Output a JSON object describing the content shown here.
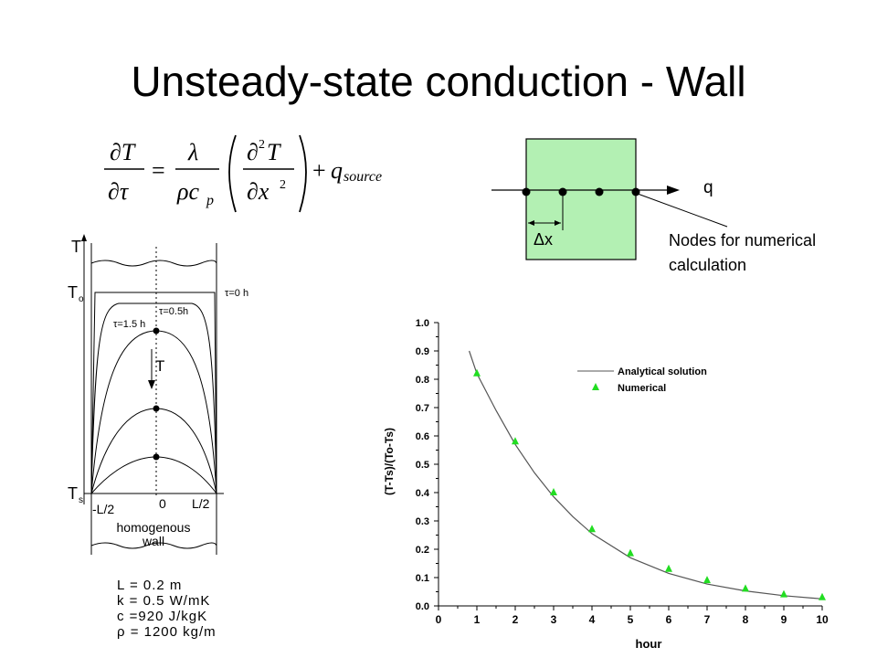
{
  "slide": {
    "title": "Unsteady-state conduction - Wall"
  },
  "equation": {
    "lhs_num": "∂T",
    "lhs_den": "∂τ",
    "coef_num": "λ",
    "coef_den": "ρc",
    "coef_den_sub": "p",
    "inner_num": "∂",
    "inner_num_sup": "2",
    "inner_num_t": "T",
    "inner_den": "∂x",
    "inner_den_sup": "2",
    "plus": "+",
    "equals": "=",
    "source": "q",
    "source_sub": "source"
  },
  "node_diagram": {
    "q_label": "q",
    "dx_label": "Δx",
    "note_line1": "Nodes for numerical",
    "note_line2": "calculation",
    "fill_color": "#b3f0b3"
  },
  "profile": {
    "t_axis": "T",
    "t0_label": "T",
    "t0_sub": "o",
    "ts_label": "T",
    "ts_sub": "s",
    "t_arrow": "T",
    "left_x": "-L/2",
    "center_x": "0",
    "right_x": "L/2",
    "wall_line1": "homogenous",
    "wall_line2": "wall",
    "tau0": "τ=0 h",
    "tau05": "τ=0.5h",
    "tau15": "τ=1.5 h"
  },
  "properties": {
    "l": "L = 0.2 m",
    "k": "k = 0.5 W/mK",
    "c": "c  =920 J/kgK",
    "rho": "ρ = 1200 kg/m"
  },
  "chart_data": {
    "type": "scatter",
    "xlabel": "hour",
    "ylabel": "(T-Ts)/(To-Ts)",
    "xlim": [
      0,
      10
    ],
    "ylim": [
      0,
      1.0
    ],
    "x_ticks": [
      "0",
      "1",
      "2",
      "3",
      "4",
      "5",
      "6",
      "7",
      "8",
      "9",
      "10"
    ],
    "y_ticks": [
      "0.0",
      "0.1",
      "0.2",
      "0.3",
      "0.4",
      "0.5",
      "0.6",
      "0.7",
      "0.8",
      "0.9",
      "1.0"
    ],
    "legend_position": "top-right",
    "series": [
      {
        "name": "Analytical solution",
        "kind": "line",
        "color": "#555555",
        "x": [
          0.8,
          1,
          1.5,
          2,
          2.5,
          3,
          3.5,
          4,
          5,
          6,
          7,
          8,
          9,
          10
        ],
        "y": [
          0.9,
          0.82,
          0.69,
          0.57,
          0.47,
          0.385,
          0.315,
          0.255,
          0.17,
          0.115,
          0.077,
          0.053,
          0.036,
          0.025
        ]
      },
      {
        "name": "Numerical",
        "kind": "marker",
        "color": "#22dd22",
        "x": [
          1,
          2,
          3,
          4,
          5,
          6,
          7,
          8,
          9,
          10
        ],
        "y": [
          0.82,
          0.58,
          0.4,
          0.27,
          0.185,
          0.13,
          0.09,
          0.06,
          0.04,
          0.03
        ]
      }
    ]
  }
}
